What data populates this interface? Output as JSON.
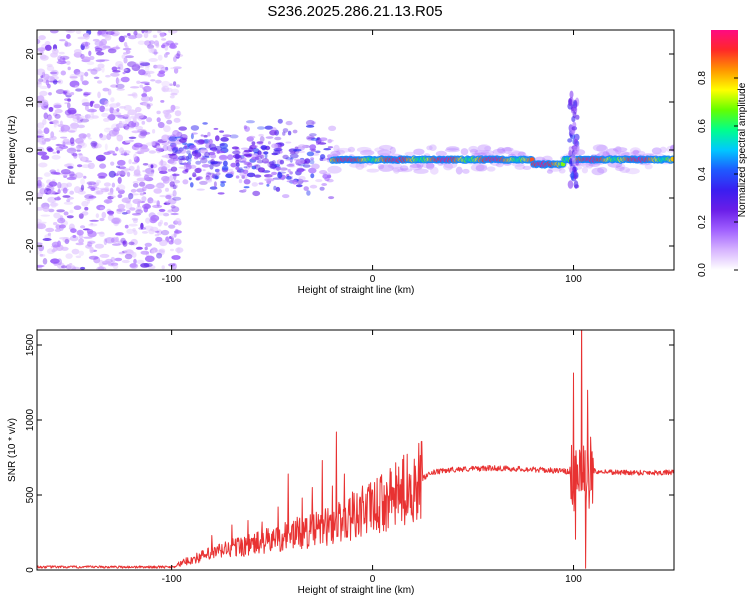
{
  "title": "S236.2025.286.21.13.R05",
  "chart_data": [
    {
      "type": "heatmap",
      "xlabel": "Height of straight line (km)",
      "ylabel": "Frequency (Hz)",
      "xlim": [
        -167,
        150
      ],
      "ylim": [
        -25,
        25
      ],
      "xticks": [
        -100,
        0,
        100
      ],
      "xticklabels": [
        "-100",
        "0",
        "100"
      ],
      "yticks": [
        -20,
        -10,
        0,
        10,
        20
      ],
      "yticklabels": [
        "-20",
        "-10",
        "0",
        "10",
        "20"
      ],
      "colorbar": {
        "label": "Normalized spectral amplitude",
        "range": [
          0,
          1
        ],
        "ticks": [
          0.0,
          0.2,
          0.4,
          0.6,
          0.8
        ],
        "ticklabels": [
          "0.0",
          "0.2",
          "0.4",
          "0.6",
          "0.8"
        ],
        "colors": [
          "#ffffff",
          "#d7b4ff",
          "#a060ff",
          "#6a1ee8",
          "#3a1ef0",
          "#1e5aff",
          "#00c8ff",
          "#00ff8c",
          "#64ff00",
          "#ffff00",
          "#ff9600",
          "#ff2828",
          "#ff0a82"
        ]
      },
      "features": {
        "noise_region_x": [
          -167,
          -100
        ],
        "scatter_region_x": [
          -100,
          -20
        ],
        "ridge_x": [
          -20,
          150
        ],
        "ridge_frequency_hz": -2,
        "spike_x": 100
      }
    },
    {
      "type": "line",
      "xlabel": "Height of straight line (km)",
      "ylabel": "SNR (10 * v/v)",
      "xlim": [
        -167,
        150
      ],
      "ylim": [
        0,
        1600
      ],
      "xticks": [
        -100,
        0,
        100
      ],
      "xticklabels": [
        "-100",
        "0",
        "100"
      ],
      "yticks": [
        0,
        500,
        1000,
        1500
      ],
      "yticklabels": [
        "0",
        "500",
        "1000",
        "1500"
      ],
      "color": "#e83232",
      "baseline": [
        [
          -167,
          20
        ],
        [
          -100,
          20
        ],
        [
          -90,
          70
        ],
        [
          -80,
          110
        ],
        [
          -70,
          150
        ],
        [
          -60,
          170
        ],
        [
          -50,
          200
        ],
        [
          -40,
          240
        ],
        [
          -30,
          260
        ],
        [
          -20,
          300
        ],
        [
          -10,
          360
        ],
        [
          0,
          410
        ],
        [
          10,
          480
        ],
        [
          20,
          570
        ],
        [
          30,
          650
        ],
        [
          40,
          670
        ],
        [
          60,
          680
        ],
        [
          80,
          670
        ],
        [
          95,
          660
        ],
        [
          102,
          640
        ],
        [
          110,
          660
        ],
        [
          125,
          650
        ],
        [
          150,
          650
        ]
      ],
      "peaks": [
        [
          -80,
          230
        ],
        [
          -70,
          300
        ],
        [
          -62,
          330
        ],
        [
          -55,
          320
        ],
        [
          -47,
          420
        ],
        [
          -42,
          640
        ],
        [
          -35,
          480
        ],
        [
          -30,
          550
        ],
        [
          -25,
          730
        ],
        [
          -20,
          560
        ],
        [
          -18,
          920
        ],
        [
          -14,
          640
        ],
        [
          -10,
          520
        ],
        [
          -5,
          560
        ],
        [
          0,
          530
        ],
        [
          100,
          1280
        ],
        [
          104,
          1600
        ],
        [
          107,
          1270
        ]
      ],
      "dips": [
        [
          101,
          370
        ],
        [
          106,
          80
        ],
        [
          109,
          300
        ]
      ]
    }
  ]
}
